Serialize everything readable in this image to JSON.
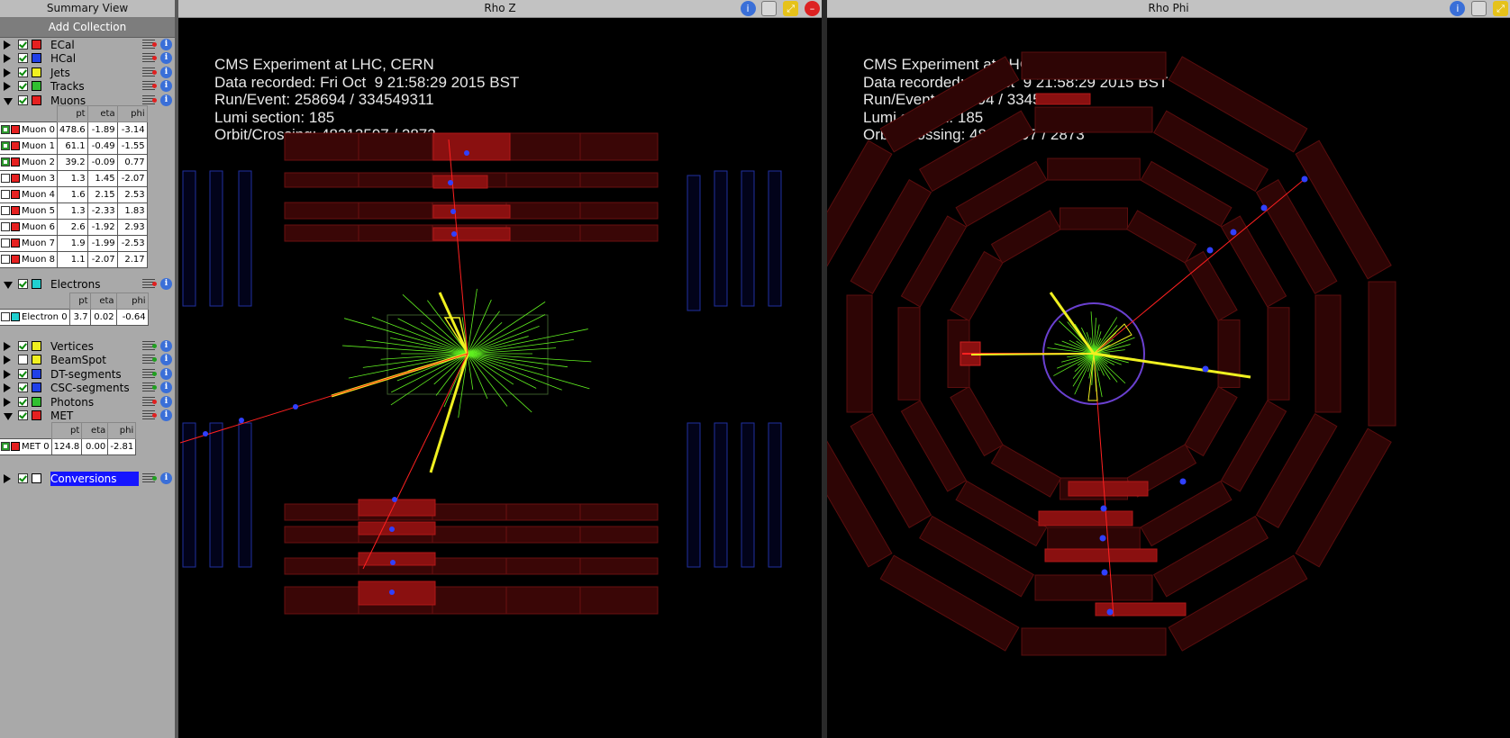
{
  "left_panel": {
    "title": "Summary View",
    "add_button": "Add Collection",
    "collections_top": [
      {
        "name": "ECal",
        "checked": true,
        "color": "#e52020",
        "expanded": false,
        "ctl": "bars"
      },
      {
        "name": "HCal",
        "checked": true,
        "color": "#2040e8",
        "expanded": false,
        "ctl": "bars"
      },
      {
        "name": "Jets",
        "checked": true,
        "color": "#f0f020",
        "expanded": false,
        "ctl": "bars"
      },
      {
        "name": "Tracks",
        "checked": true,
        "color": "#30c030",
        "expanded": false,
        "ctl": "bars"
      },
      {
        "name": "Muons",
        "checked": true,
        "color": "#e52020",
        "expanded": true,
        "ctl": "bars"
      }
    ],
    "muons_table": {
      "headers": [
        "pt",
        "eta",
        "phi"
      ],
      "rows": [
        {
          "name": "Muon 0",
          "checked": true,
          "pt": "478.6",
          "eta": "-1.89",
          "phi": "-3.14"
        },
        {
          "name": "Muon 1",
          "checked": true,
          "pt": "61.1",
          "eta": "-0.49",
          "phi": "-1.55"
        },
        {
          "name": "Muon 2",
          "checked": true,
          "pt": "39.2",
          "eta": "-0.09",
          "phi": "0.77"
        },
        {
          "name": "Muon 3",
          "checked": false,
          "pt": "1.3",
          "eta": "1.45",
          "phi": "-2.07"
        },
        {
          "name": "Muon 4",
          "checked": false,
          "pt": "1.6",
          "eta": "2.15",
          "phi": "2.53"
        },
        {
          "name": "Muon 5",
          "checked": false,
          "pt": "1.3",
          "eta": "-2.33",
          "phi": "1.83"
        },
        {
          "name": "Muon 6",
          "checked": false,
          "pt": "2.6",
          "eta": "-1.92",
          "phi": "2.93"
        },
        {
          "name": "Muon 7",
          "checked": false,
          "pt": "1.9",
          "eta": "-1.99",
          "phi": "-2.53"
        },
        {
          "name": "Muon 8",
          "checked": false,
          "pt": "1.1",
          "eta": "-2.07",
          "phi": "2.17"
        }
      ]
    },
    "electrons": {
      "name": "Electrons",
      "checked": true,
      "color": "#20d0d0"
    },
    "electrons_table": {
      "headers": [
        "pt",
        "eta",
        "phi"
      ],
      "rows": [
        {
          "name": "Electron 0",
          "checked": false,
          "pt": "3.7",
          "eta": "0.02",
          "phi": "-0.64"
        }
      ]
    },
    "collections_mid": [
      {
        "name": "Vertices",
        "checked": true,
        "color": "#f0f020",
        "ctl": "slid"
      },
      {
        "name": "BeamSpot",
        "checked": false,
        "color": "#f0f020",
        "ctl": "slid"
      },
      {
        "name": "DT-segments",
        "checked": true,
        "color": "#2040e8",
        "ctl": "slid"
      },
      {
        "name": "CSC-segments",
        "checked": true,
        "color": "#2040e8",
        "ctl": "slid"
      },
      {
        "name": "Photons",
        "checked": true,
        "color": "#30c030",
        "ctl": "bars"
      },
      {
        "name": "MET",
        "checked": true,
        "color": "#e52020",
        "ctl": "bars",
        "expanded": true
      }
    ],
    "met_table": {
      "headers": [
        "pt",
        "eta",
        "phi"
      ],
      "rows": [
        {
          "name": "MET 0",
          "checked": true,
          "pt": "124.8",
          "eta": "0.00",
          "phi": "-2.81"
        }
      ]
    },
    "conversions": {
      "name": "Conversions",
      "checked": true,
      "color": "#ffffff"
    }
  },
  "views": {
    "rhoz": {
      "title": "Rho Z"
    },
    "rhophi": {
      "title": "Rho Phi"
    }
  },
  "event_info": {
    "line1": "CMS Experiment at LHC, CERN",
    "line2": "Data recorded: Fri Oct  9 21:58:29 2015 BST",
    "line3": "Run/Event: 258694 / 334549311",
    "line4": "Lumi section: 185",
    "line5": "Orbit/Crossing: 48313597 / 2873"
  },
  "colors": {
    "muon": "#ff2020",
    "track": "#60f020",
    "jet": "#f0f020",
    "ecal": "#e52020",
    "chamber": "#8a1010",
    "dt": "#2030a0"
  },
  "icons": [
    "info-icon",
    "screenshot-icon",
    "maximize-icon",
    "close-icon",
    "expand-arrow-icon"
  ]
}
